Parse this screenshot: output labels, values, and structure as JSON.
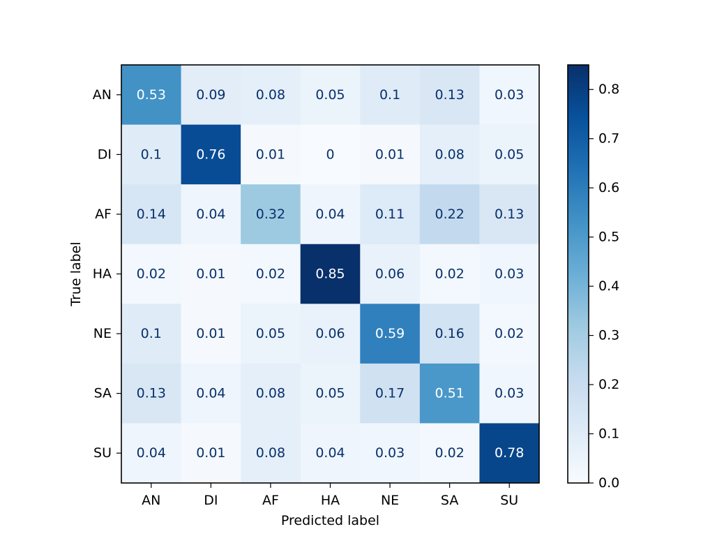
{
  "chart_data": {
    "type": "heatmap",
    "title": "",
    "xlabel": "Predicted label",
    "ylabel": "True label",
    "x_categories": [
      "AN",
      "DI",
      "AF",
      "HA",
      "NE",
      "SA",
      "SU"
    ],
    "y_categories": [
      "AN",
      "DI",
      "AF",
      "HA",
      "NE",
      "SA",
      "SU"
    ],
    "values": [
      [
        0.53,
        0.09,
        0.08,
        0.05,
        0.1,
        0.13,
        0.03
      ],
      [
        0.1,
        0.76,
        0.01,
        0,
        0.01,
        0.08,
        0.05
      ],
      [
        0.14,
        0.04,
        0.32,
        0.04,
        0.11,
        0.22,
        0.13
      ],
      [
        0.02,
        0.01,
        0.02,
        0.85,
        0.06,
        0.02,
        0.03
      ],
      [
        0.1,
        0.01,
        0.05,
        0.06,
        0.59,
        0.16,
        0.02
      ],
      [
        0.13,
        0.04,
        0.08,
        0.05,
        0.17,
        0.51,
        0.03
      ],
      [
        0.04,
        0.01,
        0.08,
        0.04,
        0.03,
        0.02,
        0.78
      ]
    ],
    "colormap": "Blues",
    "colorbar": {
      "range": [
        0,
        0.85
      ],
      "ticks": [
        0.0,
        0.1,
        0.2,
        0.3,
        0.4,
        0.5,
        0.6,
        0.7,
        0.8
      ],
      "tick_labels": [
        "0.0",
        "0.1",
        "0.2",
        "0.3",
        "0.4",
        "0.5",
        "0.6",
        "0.7",
        "0.8"
      ]
    },
    "text_colors": {
      "dark": "#08306b",
      "light": "#ffffff"
    },
    "grid": false
  }
}
